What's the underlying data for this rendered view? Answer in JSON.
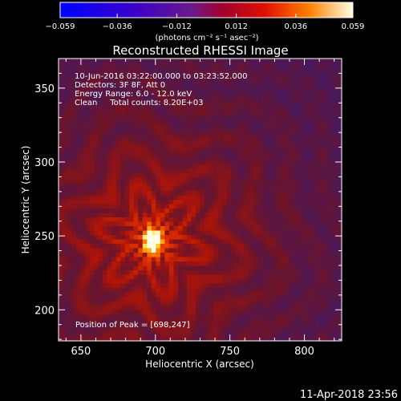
{
  "chart_data": {
    "type": "heatmap",
    "title": "Reconstructed RHESSI Image",
    "xlabel": "Heliocentric X (arcsec)",
    "ylabel": "Heliocentric Y (arcsec)",
    "xlim": [
      635,
      825
    ],
    "ylim": [
      179,
      370
    ],
    "x_ticks": [
      650,
      700,
      750,
      800
    ],
    "y_ticks": [
      200,
      250,
      300,
      350
    ],
    "colorbar": {
      "range": [
        -0.059,
        0.059
      ],
      "tick_values": [
        -0.059,
        -0.036,
        -0.012,
        0.012,
        0.036,
        0.059
      ],
      "tick_labels": [
        "−0.059",
        "−0.036",
        "−0.012",
        "0.012",
        "0.036",
        "0.059"
      ],
      "units_label": "(photons cm⁻² s⁻¹ asec⁻²)"
    },
    "peak": {
      "x": 698,
      "y": 247
    },
    "annotations": [
      "10-Jun-2016 03:22:00.000 to 03:23:52.000",
      "Detectors: 3F 8F, Att 0",
      "Energy Range: 6.0 - 12.0 keV",
      "Clean     Total counts: 8.20E+03",
      "Position of Peak = [698,247]"
    ]
  },
  "footer": {
    "timestamp": "11-Apr-2018 23:56"
  }
}
